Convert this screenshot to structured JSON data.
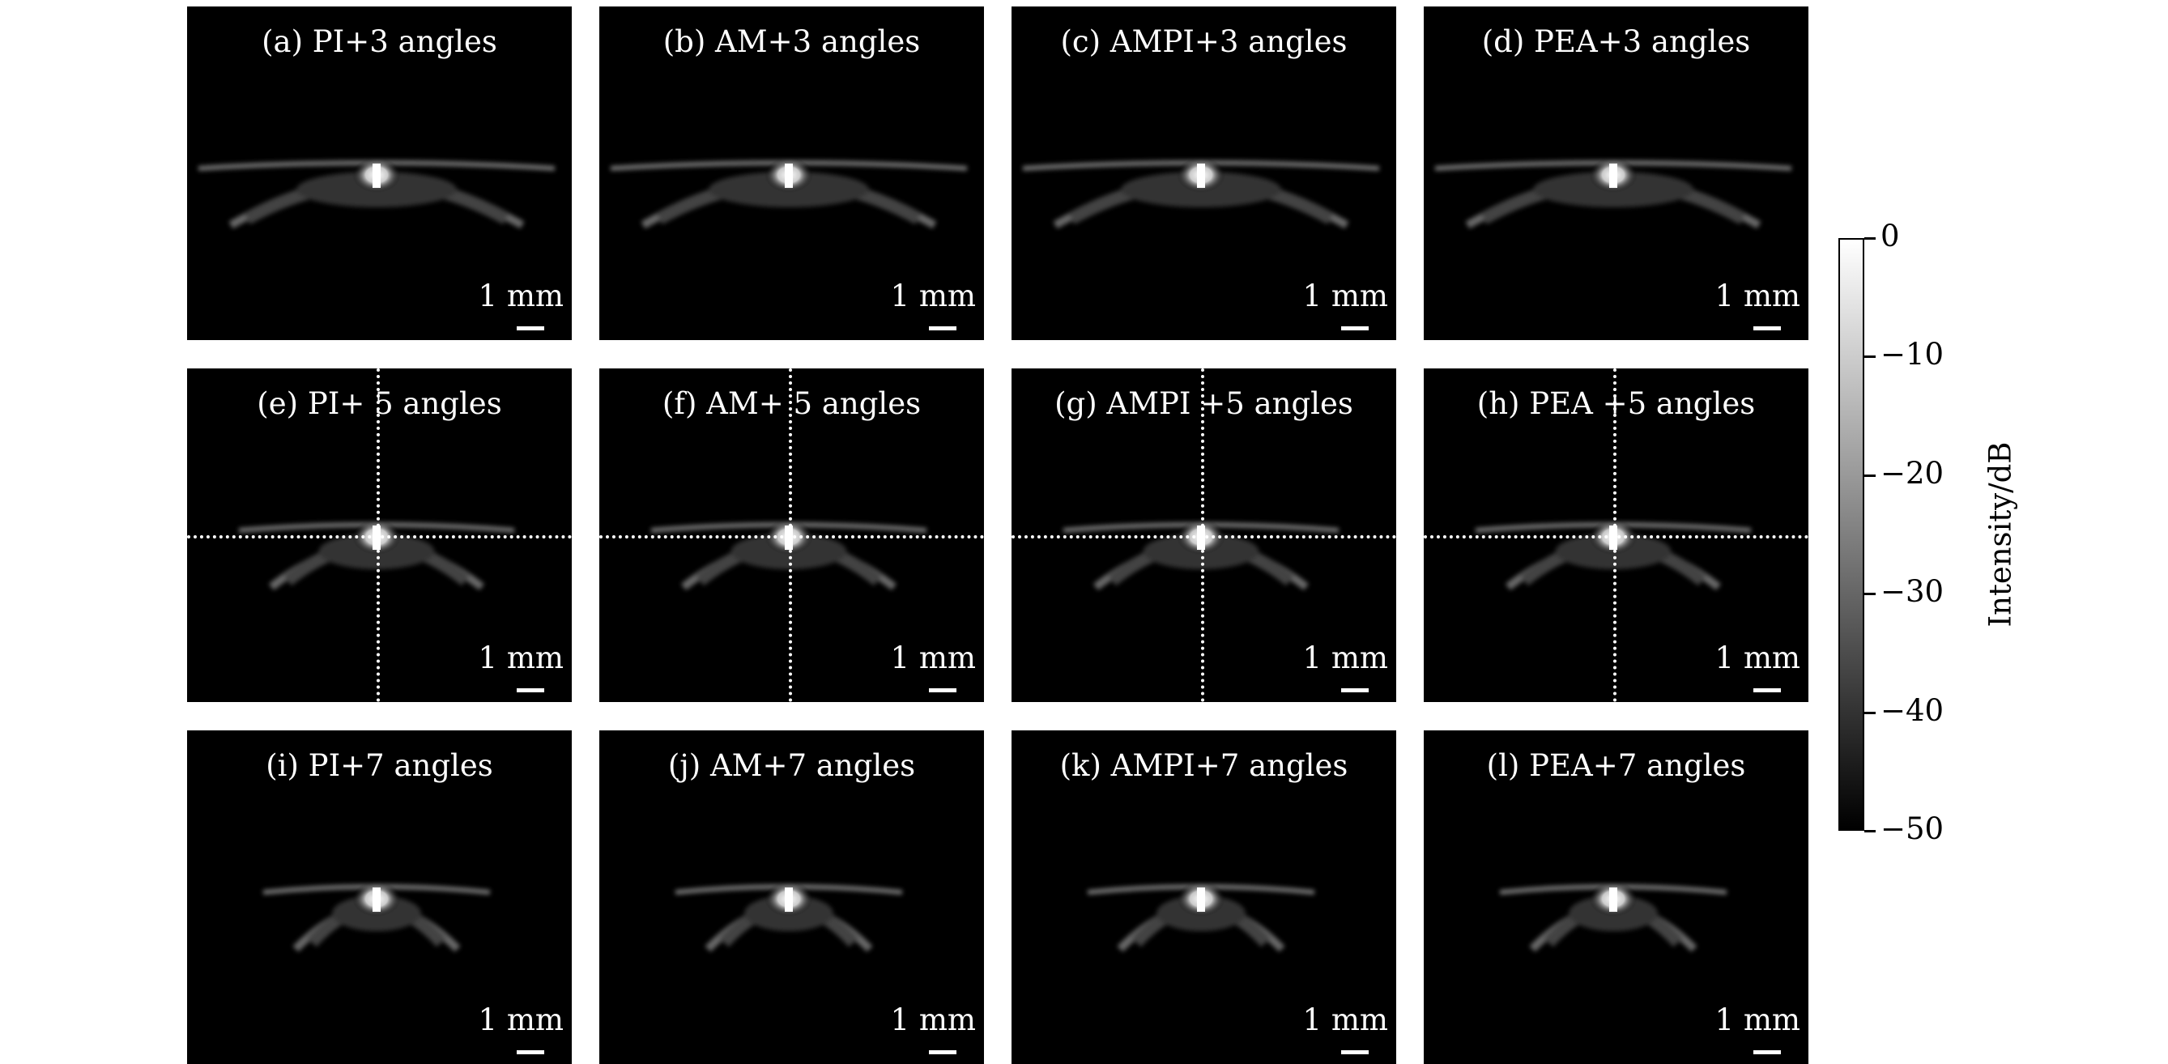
{
  "panels": [
    {
      "title": "(a) PI+3 angles",
      "scale": "1 mm",
      "crosshair": false,
      "spread": "wide"
    },
    {
      "title": "(b) AM+3 angles",
      "scale": "1 mm",
      "crosshair": false,
      "spread": "wide"
    },
    {
      "title": "(c) AMPI+3 angles",
      "scale": "1 mm",
      "crosshair": false,
      "spread": "wide"
    },
    {
      "title": "(d) PEA+3 angles",
      "scale": "1 mm",
      "crosshair": false,
      "spread": "wide"
    },
    {
      "title": "(e) PI+ 5 angles",
      "scale": "1 mm",
      "crosshair": true,
      "spread": "medium"
    },
    {
      "title": "(f) AM+ 5 angles",
      "scale": "1 mm",
      "crosshair": true,
      "spread": "medium"
    },
    {
      "title": "(g) AMPI +5 angles",
      "scale": "1 mm",
      "crosshair": true,
      "spread": "medium"
    },
    {
      "title": "(h) PEA +5 angles",
      "scale": "1 mm",
      "crosshair": true,
      "spread": "medium"
    },
    {
      "title": "(i) PI+7 angles",
      "scale": "1 mm",
      "crosshair": false,
      "spread": "narrow"
    },
    {
      "title": "(j) AM+7 angles",
      "scale": "1 mm",
      "crosshair": false,
      "spread": "narrow"
    },
    {
      "title": "(k) AMPI+7 angles",
      "scale": "1 mm",
      "crosshair": false,
      "spread": "narrow"
    },
    {
      "title": "(l) PEA+7 angles",
      "scale": "1 mm",
      "crosshair": false,
      "spread": "narrow"
    }
  ],
  "colorbar": {
    "title": "Intensity/dB",
    "ticks": [
      "0",
      "−10",
      "−20",
      "−30",
      "−40",
      "−50"
    ],
    "range": [
      -50,
      0
    ],
    "colormap": [
      "#ffffff",
      "#000000"
    ]
  }
}
